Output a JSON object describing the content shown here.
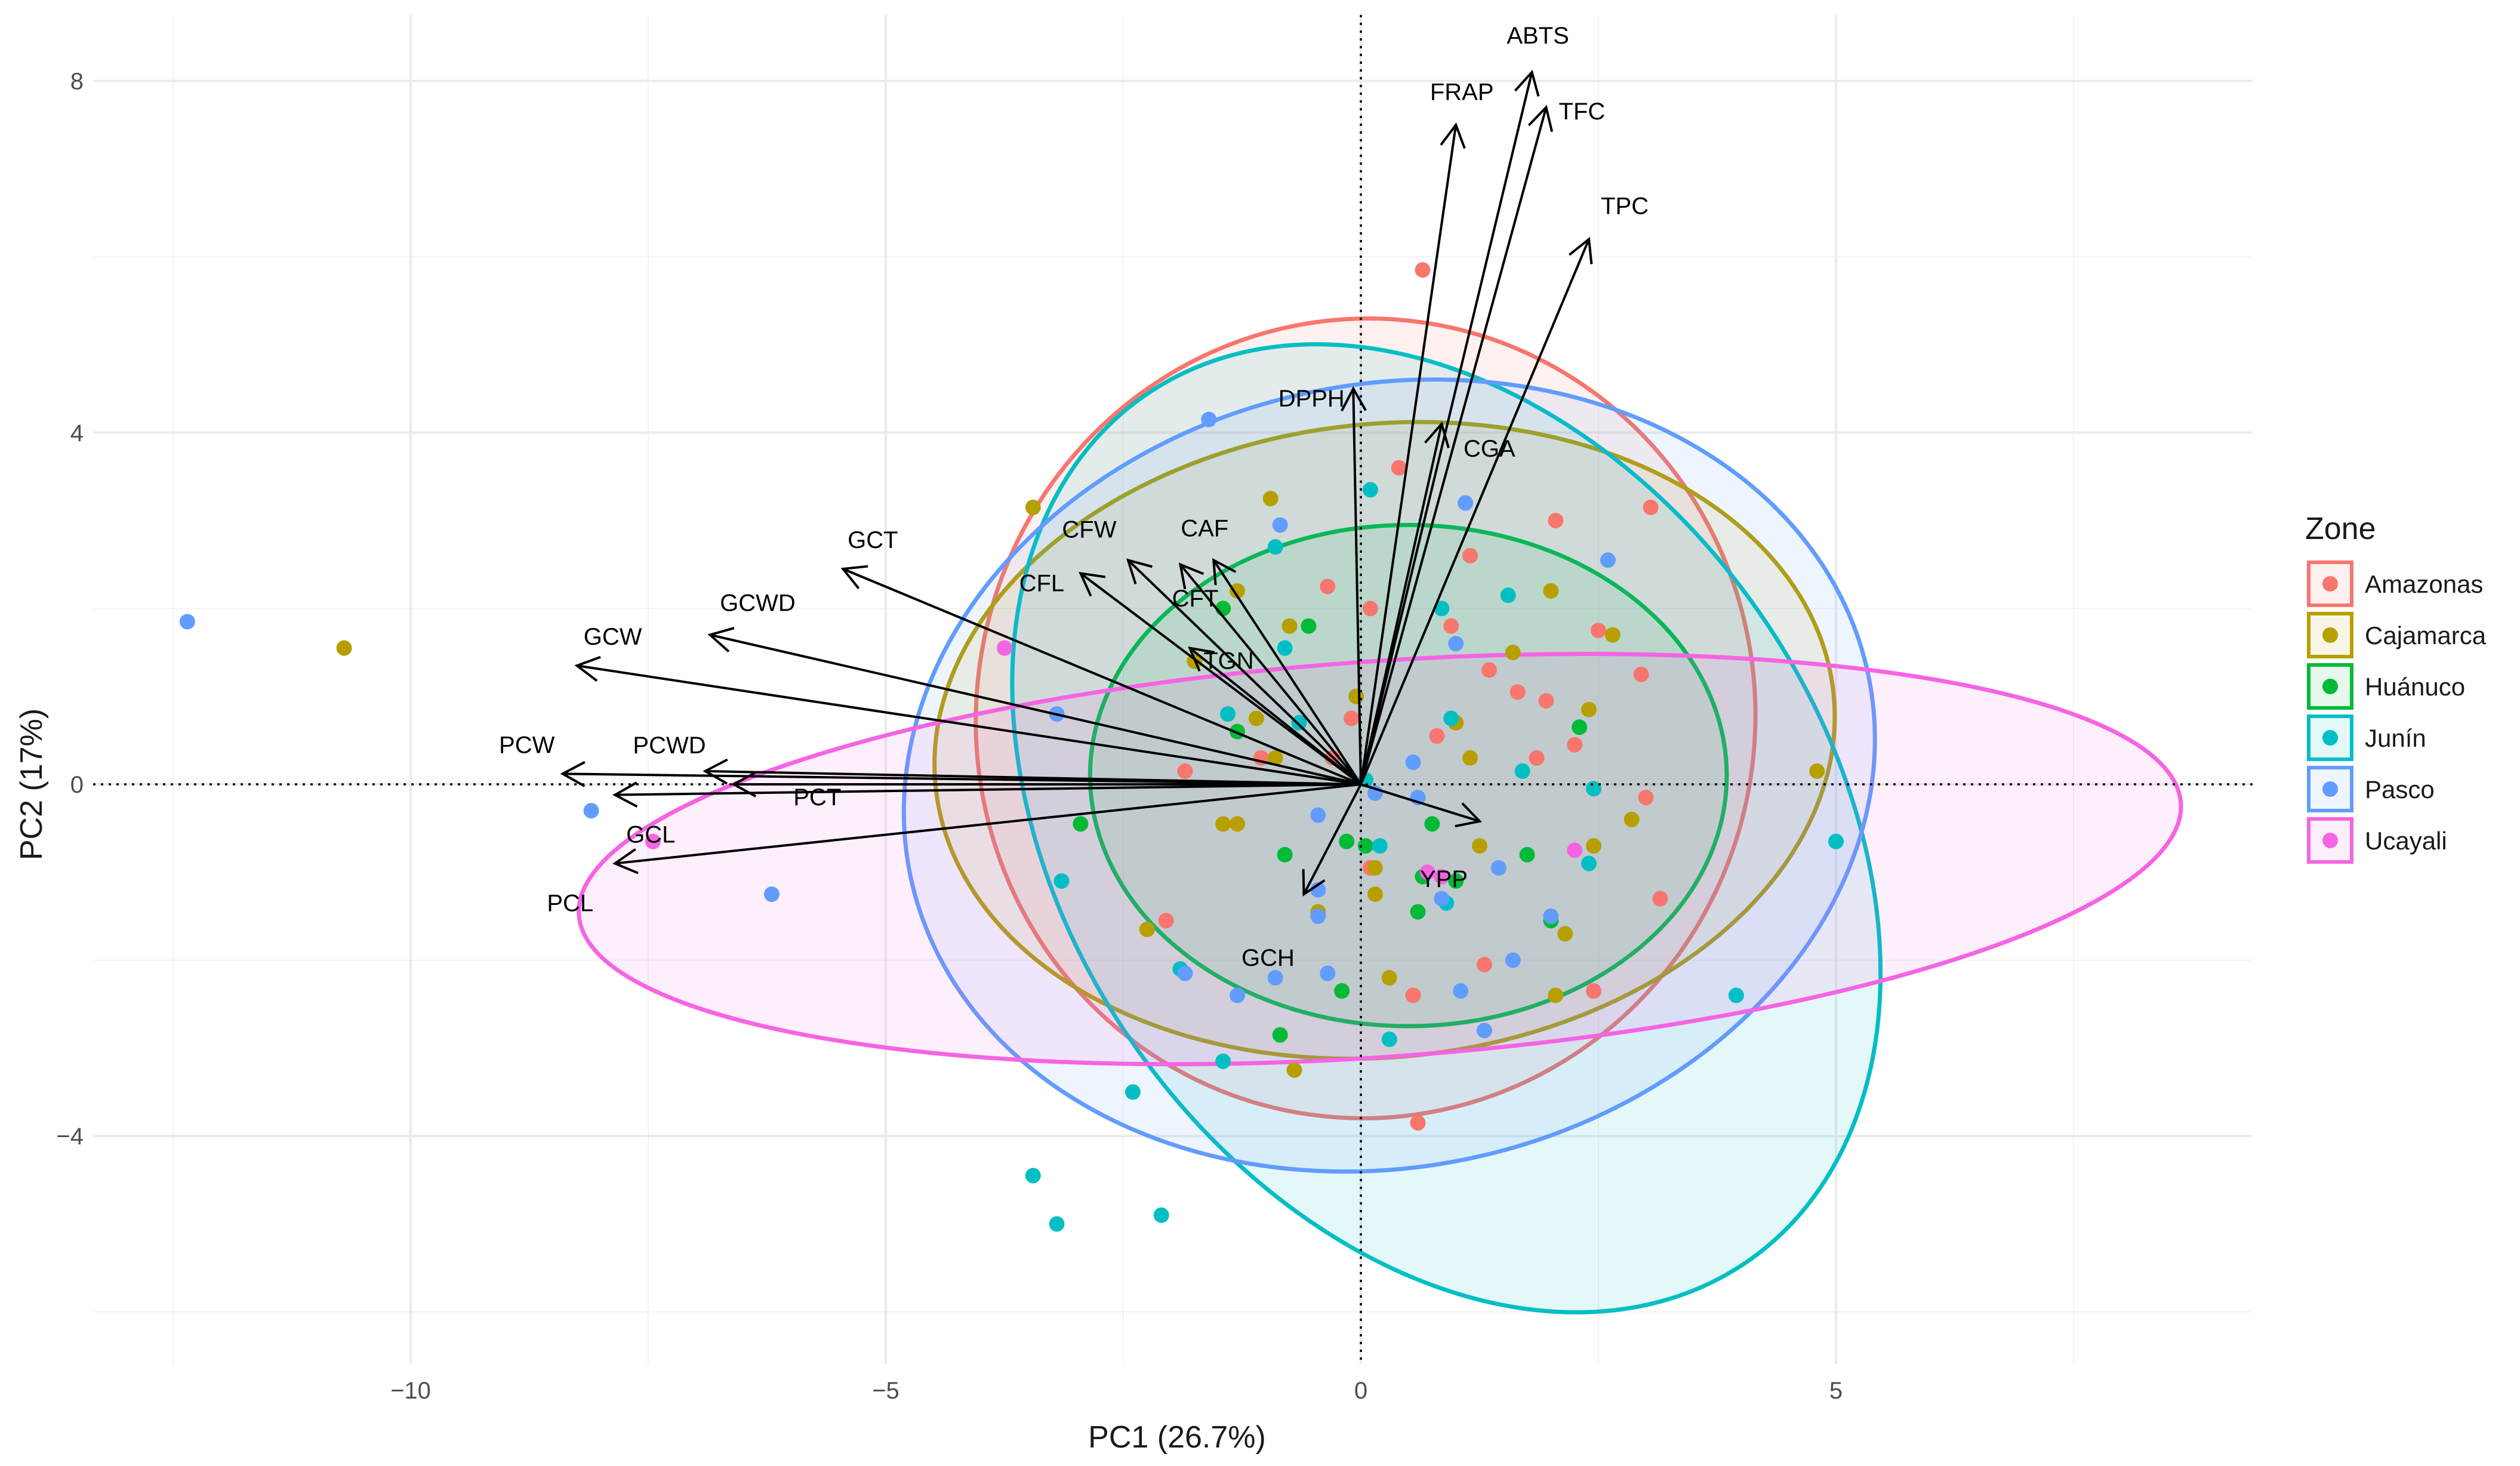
{
  "chart_data": {
    "type": "scatter",
    "subtype": "pca-biplot",
    "xlabel": "PC1 (26.7%)",
    "ylabel": "PC2 (17%)",
    "xlim": [
      -14.2,
      9.5
    ],
    "ylim": [
      -6.6,
      8.8
    ],
    "x_ticks": [
      -10,
      -5,
      0,
      5
    ],
    "x_tick_labels": [
      "−10",
      "−5",
      "0",
      "5"
    ],
    "y_ticks": [
      -4,
      0,
      4,
      8
    ],
    "y_tick_labels": [
      "−4",
      "0",
      "4",
      "8"
    ],
    "grid": true,
    "reference_lines": {
      "x": 0,
      "y": 0,
      "style": "dotted"
    },
    "legend": {
      "title": "Zone",
      "position": "right",
      "items": [
        {
          "name": "Amazonas",
          "color": "#F8766D"
        },
        {
          "name": "Cajamarca",
          "color": "#B79F00"
        },
        {
          "name": "Huánuco",
          "color": "#00BA38"
        },
        {
          "name": "Junín",
          "color": "#00BFC4"
        },
        {
          "name": "Pasco",
          "color": "#619CFF"
        },
        {
          "name": "Ucayali",
          "color": "#F564E3"
        }
      ]
    },
    "ellipses": [
      {
        "zone": "Amazonas",
        "cx": 0.05,
        "cy": 0.75,
        "rx": 4.1,
        "ry": 4.55,
        "angle": 8
      },
      {
        "zone": "Cajamarca",
        "cx": 0.25,
        "cy": 0.5,
        "rx": 4.75,
        "ry": 3.6,
        "angle": -6
      },
      {
        "zone": "Huánuco",
        "cx": 0.5,
        "cy": 0.1,
        "rx": 3.35,
        "ry": 2.85,
        "angle": 0
      },
      {
        "zone": "Junín",
        "cx": 0.9,
        "cy": -0.5,
        "rx": 4.0,
        "ry": 6.0,
        "angle": -35
      },
      {
        "zone": "Pasco",
        "cx": 0.3,
        "cy": 0.1,
        "rx": 5.15,
        "ry": 4.45,
        "angle": -12
      },
      {
        "zone": "Ucayali",
        "cx": 0.2,
        "cy": -0.85,
        "rx": 8.45,
        "ry": 2.25,
        "angle": -4
      }
    ],
    "loadings": [
      {
        "name": "ABTS",
        "x": 1.8,
        "y": 8.1
      },
      {
        "name": "FRAP",
        "x": 1.0,
        "y": 7.5
      },
      {
        "name": "TFC",
        "x": 1.95,
        "y": 7.7
      },
      {
        "name": "TPC",
        "x": 2.4,
        "y": 6.2
      },
      {
        "name": "DPPH",
        "x": -0.08,
        "y": 4.5
      },
      {
        "name": "CGA",
        "x": 0.85,
        "y": 4.1
      },
      {
        "name": "CAF",
        "x": -1.55,
        "y": 2.55
      },
      {
        "name": "CFW",
        "x": -2.45,
        "y": 2.55
      },
      {
        "name": "CFL",
        "x": -2.95,
        "y": 2.4
      },
      {
        "name": "CFT",
        "x": -1.9,
        "y": 2.5
      },
      {
        "name": "TGN",
        "x": -1.8,
        "y": 1.55
      },
      {
        "name": "GCT",
        "x": -5.45,
        "y": 2.45
      },
      {
        "name": "GCWD",
        "x": -6.85,
        "y": 1.7
      },
      {
        "name": "GCW",
        "x": -8.25,
        "y": 1.35
      },
      {
        "name": "PCWD",
        "x": -6.9,
        "y": 0.15
      },
      {
        "name": "PCW",
        "x": -8.4,
        "y": 0.12
      },
      {
        "name": "PCT",
        "x": -6.6,
        "y": 0.0
      },
      {
        "name": "GCL",
        "x": -7.85,
        "y": -0.12
      },
      {
        "name": "PCL",
        "x": -7.85,
        "y": -0.9
      },
      {
        "name": "GCH",
        "x": -0.6,
        "y": -1.25
      },
      {
        "name": "YPP",
        "x": 1.25,
        "y": -0.42
      }
    ],
    "points": [
      {
        "zone": "Amazonas",
        "x": 0.65,
        "y": 5.85
      },
      {
        "zone": "Amazonas",
        "x": 0.4,
        "y": 3.6
      },
      {
        "zone": "Amazonas",
        "x": 3.05,
        "y": 3.15
      },
      {
        "zone": "Amazonas",
        "x": 2.05,
        "y": 3.0
      },
      {
        "zone": "Amazonas",
        "x": 1.15,
        "y": 2.6
      },
      {
        "zone": "Amazonas",
        "x": 0.1,
        "y": 2.0
      },
      {
        "zone": "Amazonas",
        "x": 0.95,
        "y": 1.8
      },
      {
        "zone": "Amazonas",
        "x": 2.5,
        "y": 1.75
      },
      {
        "zone": "Amazonas",
        "x": 1.35,
        "y": 1.3
      },
      {
        "zone": "Amazonas",
        "x": 1.65,
        "y": 1.05
      },
      {
        "zone": "Amazonas",
        "x": 1.95,
        "y": 0.95
      },
      {
        "zone": "Amazonas",
        "x": 2.95,
        "y": 1.25
      },
      {
        "zone": "Amazonas",
        "x": 2.25,
        "y": 0.45
      },
      {
        "zone": "Amazonas",
        "x": 1.85,
        "y": 0.3
      },
      {
        "zone": "Amazonas",
        "x": 0.8,
        "y": 0.55
      },
      {
        "zone": "Amazonas",
        "x": -0.1,
        "y": 0.75
      },
      {
        "zone": "Amazonas",
        "x": -0.3,
        "y": 0.3
      },
      {
        "zone": "Amazonas",
        "x": 3.0,
        "y": -0.15
      },
      {
        "zone": "Amazonas",
        "x": 3.15,
        "y": -1.3
      },
      {
        "zone": "Amazonas",
        "x": -1.85,
        "y": 0.15
      },
      {
        "zone": "Amazonas",
        "x": -1.05,
        "y": 0.3
      },
      {
        "zone": "Amazonas",
        "x": -2.05,
        "y": -1.55
      },
      {
        "zone": "Amazonas",
        "x": 2.45,
        "y": -2.35
      },
      {
        "zone": "Amazonas",
        "x": 0.55,
        "y": -2.4
      },
      {
        "zone": "Amazonas",
        "x": 0.6,
        "y": -3.85
      },
      {
        "zone": "Amazonas",
        "x": 1.3,
        "y": -2.05
      },
      {
        "zone": "Amazonas",
        "x": -0.35,
        "y": 2.25
      },
      {
        "zone": "Amazonas",
        "x": 0.1,
        "y": -0.95
      },
      {
        "zone": "Cajamarca",
        "x": -10.7,
        "y": 1.55
      },
      {
        "zone": "Cajamarca",
        "x": -3.45,
        "y": 3.15
      },
      {
        "zone": "Cajamarca",
        "x": -0.95,
        "y": 3.25
      },
      {
        "zone": "Cajamarca",
        "x": -1.3,
        "y": 2.2
      },
      {
        "zone": "Cajamarca",
        "x": -0.75,
        "y": 1.8
      },
      {
        "zone": "Cajamarca",
        "x": -1.75,
        "y": 1.4
      },
      {
        "zone": "Cajamarca",
        "x": 2.0,
        "y": 2.2
      },
      {
        "zone": "Cajamarca",
        "x": 2.65,
        "y": 1.7
      },
      {
        "zone": "Cajamarca",
        "x": 2.4,
        "y": 0.85
      },
      {
        "zone": "Cajamarca",
        "x": 1.6,
        "y": 1.5
      },
      {
        "zone": "Cajamarca",
        "x": 1.15,
        "y": 0.3
      },
      {
        "zone": "Cajamarca",
        "x": -0.05,
        "y": 1.0
      },
      {
        "zone": "Cajamarca",
        "x": -1.1,
        "y": 0.75
      },
      {
        "zone": "Cajamarca",
        "x": -0.9,
        "y": 0.3
      },
      {
        "zone": "Cajamarca",
        "x": 4.8,
        "y": 0.15
      },
      {
        "zone": "Cajamarca",
        "x": 2.85,
        "y": -0.4
      },
      {
        "zone": "Cajamarca",
        "x": 2.45,
        "y": -0.7
      },
      {
        "zone": "Cajamarca",
        "x": 1.25,
        "y": -0.7
      },
      {
        "zone": "Cajamarca",
        "x": 2.15,
        "y": -1.7
      },
      {
        "zone": "Cajamarca",
        "x": 0.15,
        "y": -1.25
      },
      {
        "zone": "Cajamarca",
        "x": -1.45,
        "y": -0.45
      },
      {
        "zone": "Cajamarca",
        "x": -1.3,
        "y": -0.45
      },
      {
        "zone": "Cajamarca",
        "x": -2.25,
        "y": -1.65
      },
      {
        "zone": "Cajamarca",
        "x": -0.45,
        "y": -1.45
      },
      {
        "zone": "Cajamarca",
        "x": 0.3,
        "y": -2.2
      },
      {
        "zone": "Cajamarca",
        "x": 2.05,
        "y": -2.4
      },
      {
        "zone": "Cajamarca",
        "x": 0.15,
        "y": -0.95
      },
      {
        "zone": "Cajamarca",
        "x": -0.7,
        "y": -3.25
      },
      {
        "zone": "Cajamarca",
        "x": 1.0,
        "y": 0.7
      },
      {
        "zone": "Huánuco",
        "x": -1.45,
        "y": 2.0
      },
      {
        "zone": "Huánuco",
        "x": -0.55,
        "y": 1.8
      },
      {
        "zone": "Huánuco",
        "x": -1.3,
        "y": 0.6
      },
      {
        "zone": "Huánuco",
        "x": 2.3,
        "y": 0.65
      },
      {
        "zone": "Huánuco",
        "x": -2.95,
        "y": -0.45
      },
      {
        "zone": "Huánuco",
        "x": -0.8,
        "y": -0.8
      },
      {
        "zone": "Huánuco",
        "x": -0.15,
        "y": -0.65
      },
      {
        "zone": "Huánuco",
        "x": 0.05,
        "y": -0.7
      },
      {
        "zone": "Huánuco",
        "x": 0.75,
        "y": -0.45
      },
      {
        "zone": "Huánuco",
        "x": 1.75,
        "y": -0.8
      },
      {
        "zone": "Huánuco",
        "x": 0.65,
        "y": -1.05
      },
      {
        "zone": "Huánuco",
        "x": 1.0,
        "y": -1.1
      },
      {
        "zone": "Huánuco",
        "x": 0.6,
        "y": -1.45
      },
      {
        "zone": "Huánuco",
        "x": 2.0,
        "y": -1.55
      },
      {
        "zone": "Huánuco",
        "x": -0.85,
        "y": -2.85
      },
      {
        "zone": "Huánuco",
        "x": -0.2,
        "y": -2.35
      },
      {
        "zone": "Junín",
        "x": -0.9,
        "y": 2.7
      },
      {
        "zone": "Junín",
        "x": 0.1,
        "y": 3.35
      },
      {
        "zone": "Junín",
        "x": 1.55,
        "y": 2.15
      },
      {
        "zone": "Junín",
        "x": -0.8,
        "y": 1.55
      },
      {
        "zone": "Junín",
        "x": 0.85,
        "y": 2.0
      },
      {
        "zone": "Junín",
        "x": 0.95,
        "y": 0.75
      },
      {
        "zone": "Junín",
        "x": -1.4,
        "y": 0.8
      },
      {
        "zone": "Junín",
        "x": -0.65,
        "y": 0.7
      },
      {
        "zone": "Junín",
        "x": 1.7,
        "y": 0.15
      },
      {
        "zone": "Junín",
        "x": 2.45,
        "y": -0.05
      },
      {
        "zone": "Junín",
        "x": 0.05,
        "y": 0.05
      },
      {
        "zone": "Junín",
        "x": 0.2,
        "y": -0.7
      },
      {
        "zone": "Junín",
        "x": 2.4,
        "y": -0.9
      },
      {
        "zone": "Junín",
        "x": 0.9,
        "y": -1.35
      },
      {
        "zone": "Junín",
        "x": 5.0,
        "y": -0.65
      },
      {
        "zone": "Junín",
        "x": 3.95,
        "y": -2.4
      },
      {
        "zone": "Junín",
        "x": -3.15,
        "y": -1.1
      },
      {
        "zone": "Junín",
        "x": -1.9,
        "y": -2.1
      },
      {
        "zone": "Junín",
        "x": 0.3,
        "y": -2.9
      },
      {
        "zone": "Junín",
        "x": -1.45,
        "y": -3.15
      },
      {
        "zone": "Junín",
        "x": -2.4,
        "y": -3.5
      },
      {
        "zone": "Junín",
        "x": -3.45,
        "y": -4.45
      },
      {
        "zone": "Junín",
        "x": -3.2,
        "y": -5.0
      },
      {
        "zone": "Junín",
        "x": -2.1,
        "y": -4.9
      },
      {
        "zone": "Pasco",
        "x": -12.35,
        "y": 1.85
      },
      {
        "zone": "Pasco",
        "x": -1.6,
        "y": 4.15
      },
      {
        "zone": "Pasco",
        "x": 1.1,
        "y": 3.2
      },
      {
        "zone": "Pasco",
        "x": -0.85,
        "y": 2.95
      },
      {
        "zone": "Pasco",
        "x": 2.6,
        "y": 2.55
      },
      {
        "zone": "Pasco",
        "x": 1.0,
        "y": 1.6
      },
      {
        "zone": "Pasco",
        "x": -3.2,
        "y": 0.8
      },
      {
        "zone": "Pasco",
        "x": 0.55,
        "y": 0.25
      },
      {
        "zone": "Pasco",
        "x": 0.15,
        "y": -0.1
      },
      {
        "zone": "Pasco",
        "x": 0.6,
        "y": -0.15
      },
      {
        "zone": "Pasco",
        "x": -8.1,
        "y": -0.3
      },
      {
        "zone": "Pasco",
        "x": -6.2,
        "y": -1.25
      },
      {
        "zone": "Pasco",
        "x": -0.45,
        "y": -0.35
      },
      {
        "zone": "Pasco",
        "x": 1.45,
        "y": -0.95
      },
      {
        "zone": "Pasco",
        "x": 2.0,
        "y": -1.5
      },
      {
        "zone": "Pasco",
        "x": -0.45,
        "y": -1.2
      },
      {
        "zone": "Pasco",
        "x": -1.85,
        "y": -2.15
      },
      {
        "zone": "Pasco",
        "x": -0.9,
        "y": -2.2
      },
      {
        "zone": "Pasco",
        "x": -0.35,
        "y": -2.15
      },
      {
        "zone": "Pasco",
        "x": 1.05,
        "y": -2.35
      },
      {
        "zone": "Pasco",
        "x": 1.3,
        "y": -2.8
      },
      {
        "zone": "Pasco",
        "x": 1.6,
        "y": -2.0
      },
      {
        "zone": "Pasco",
        "x": -1.3,
        "y": -2.4
      },
      {
        "zone": "Pasco",
        "x": 0.85,
        "y": -1.3
      },
      {
        "zone": "Pasco",
        "x": -0.45,
        "y": -1.5
      },
      {
        "zone": "Ucayali",
        "x": -3.75,
        "y": 1.55
      },
      {
        "zone": "Ucayali",
        "x": -7.45,
        "y": -0.65
      },
      {
        "zone": "Ucayali",
        "x": 2.25,
        "y": -0.75
      },
      {
        "zone": "Ucayali",
        "x": 0.7,
        "y": -1.0
      },
      {
        "zone": "Ucayali",
        "x": 0.85,
        "y": -1.05
      }
    ]
  }
}
